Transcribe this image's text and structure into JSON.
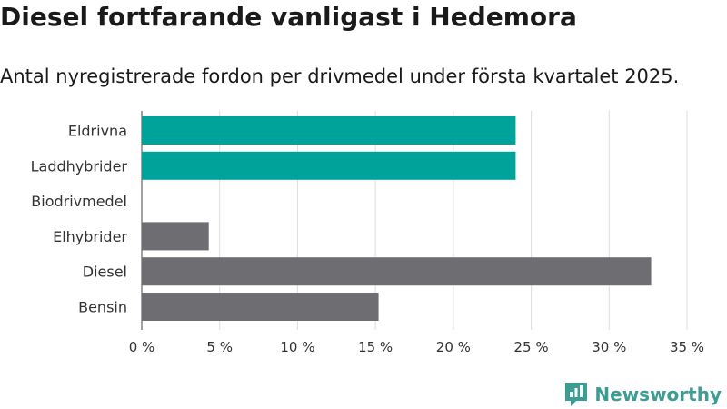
{
  "header": {
    "title": "Diesel fortfarande vanligast i Hedemora",
    "subtitle": "Antal nyregistrerade fordon per drivmedel under första kvartalet 2025."
  },
  "brand": {
    "name": "Newsworthy",
    "color": "#3d9d95",
    "icon": "newsworthy-logo-icon"
  },
  "chart_data": {
    "type": "bar",
    "orientation": "horizontal",
    "categories": [
      "Eldrivna",
      "Laddhybrider",
      "Biodrivmedel",
      "Elhybrider",
      "Diesel",
      "Bensin"
    ],
    "values": [
      24.0,
      24.0,
      0,
      4.3,
      32.7,
      15.2
    ],
    "colors": [
      "#00a39a",
      "#00a39a",
      "#00a39a",
      "#6e6d72",
      "#6e6d72",
      "#6e6d72"
    ],
    "x_ticks": [
      "0 %",
      "5 %",
      "10 %",
      "15 %",
      "20 %",
      "25 %",
      "30 %",
      "35 %"
    ],
    "xlim": [
      0,
      35
    ],
    "grid": true
  }
}
